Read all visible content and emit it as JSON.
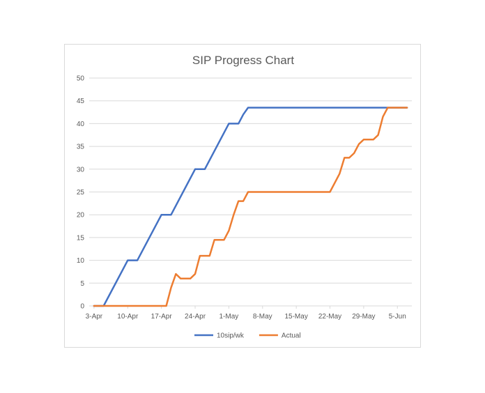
{
  "chart_data": {
    "type": "line",
    "title": "SIP Progress Chart",
    "xlabel": "",
    "ylabel": "",
    "ylim": [
      0,
      50
    ],
    "y_ticks": [
      0,
      5,
      10,
      15,
      20,
      25,
      30,
      35,
      40,
      45,
      50
    ],
    "x_ticks": [
      "3-Apr",
      "10-Apr",
      "17-Apr",
      "24-Apr",
      "1-May",
      "8-May",
      "15-May",
      "22-May",
      "29-May",
      "5-Jun"
    ],
    "x_tick_days": [
      0,
      7,
      14,
      21,
      28,
      35,
      42,
      49,
      56,
      63
    ],
    "grid": "horizontal",
    "legend": "bottom",
    "colors": {
      "10sip/wk": "#4472C4",
      "Actual": "#ED7D31",
      "grid": "#d9d9d9"
    },
    "series": [
      {
        "name": "10sip/wk",
        "x": [
          "3-Apr",
          "5-Apr",
          "10-Apr",
          "12-Apr",
          "17-Apr",
          "19-Apr",
          "24-Apr",
          "26-Apr",
          "1-May",
          "3-May",
          "4-May",
          "5-May",
          "6-Jun",
          "7-Jun"
        ],
        "x_days": [
          0,
          2,
          7,
          9,
          14,
          16,
          21,
          23,
          28,
          30,
          31,
          32,
          64,
          65
        ],
        "values": [
          0,
          0,
          10,
          10,
          20,
          20,
          30,
          30,
          40,
          40,
          42,
          43.5,
          43.5,
          43.5
        ]
      },
      {
        "name": "Actual",
        "x_days": [
          0,
          15,
          16,
          17,
          18,
          19,
          20,
          21,
          22,
          23,
          24,
          25,
          26,
          27,
          28,
          29,
          30,
          31,
          32,
          33,
          34,
          35,
          36,
          37,
          38,
          39,
          40,
          41,
          42,
          43,
          44,
          45,
          46,
          47,
          48,
          49,
          50,
          51,
          52,
          53,
          54,
          55,
          56,
          57,
          58,
          59,
          60,
          61,
          62,
          63,
          64,
          65
        ],
        "values": [
          0,
          0,
          4,
          7,
          6,
          6,
          6,
          7,
          11,
          11,
          11,
          14.5,
          14.5,
          14.5,
          16.5,
          20,
          23,
          23,
          25,
          25,
          25,
          25,
          25,
          25,
          25,
          25,
          25,
          25,
          25,
          25,
          25,
          25,
          25,
          25,
          25,
          25,
          27,
          29,
          32.5,
          32.5,
          33.5,
          35.5,
          36.5,
          36.5,
          36.5,
          37.5,
          41.5,
          43.5,
          43.5,
          43.5,
          43.5,
          43.5
        ]
      }
    ]
  }
}
